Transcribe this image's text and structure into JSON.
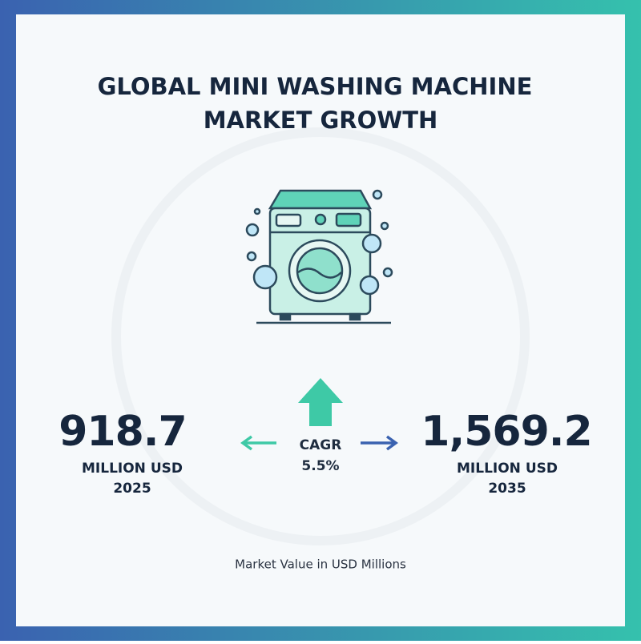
{
  "header": {
    "title_lines": [
      "GLOBAL MINI WASHING MACHINE",
      "MARKET GROWTH"
    ]
  },
  "start": {
    "value": "918.7",
    "unit": "MILLION USD",
    "year": "2025"
  },
  "cagr": {
    "label": "CAGR",
    "value": "5.5%"
  },
  "end": {
    "value": "1,569.2",
    "unit": "MILLION USD",
    "year": "2035"
  },
  "footnote": "Market Value in USD Millions"
}
